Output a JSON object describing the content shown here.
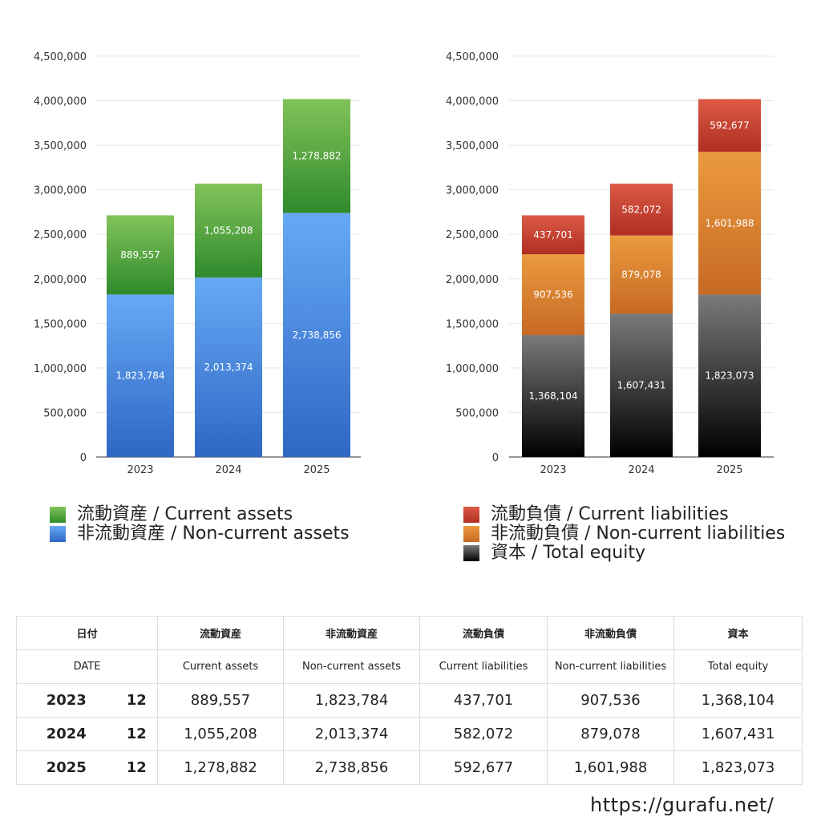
{
  "chart_data": [
    {
      "type": "bar",
      "stacked": true,
      "categories": [
        "2023",
        "2024",
        "2025"
      ],
      "ylim": [
        0,
        4500000
      ],
      "yticks": [
        0,
        500000,
        1000000,
        1500000,
        2000000,
        2500000,
        3000000,
        3500000,
        4000000,
        4500000
      ],
      "ytick_labels": [
        "0",
        "500,000",
        "1,000,000",
        "1,500,000",
        "2,000,000",
        "2,500,000",
        "3,000,000",
        "3,500,000",
        "4,000,000",
        "4,500,000"
      ],
      "grid": true,
      "legend_position": "bottom",
      "series": [
        {
          "name": "非流動資産 / Non-current assets",
          "values": [
            1823784,
            2013374,
            2738856
          ],
          "labels": [
            "1,823,784",
            "2,013,374",
            "2,738,856"
          ],
          "color_top": "#66a9f5",
          "color_bottom": "#2f67c4"
        },
        {
          "name": "流動資産 / Current assets",
          "values": [
            889557,
            1055208,
            1278882
          ],
          "labels": [
            "889,557",
            "1,055,208",
            "1,278,882"
          ],
          "color_top": "#82c35a",
          "color_bottom": "#2f8a2c"
        }
      ],
      "legend": [
        {
          "label": "流動資産 / Current assets",
          "color_top": "#82c35a",
          "color_bottom": "#2f8a2c"
        },
        {
          "label": "非流動資産 / Non-current assets",
          "color_top": "#66a9f5",
          "color_bottom": "#2f67c4"
        }
      ]
    },
    {
      "type": "bar",
      "stacked": true,
      "categories": [
        "2023",
        "2024",
        "2025"
      ],
      "ylim": [
        0,
        4500000
      ],
      "yticks": [
        0,
        500000,
        1000000,
        1500000,
        2000000,
        2500000,
        3000000,
        3500000,
        4000000,
        4500000
      ],
      "ytick_labels": [
        "0",
        "500,000",
        "1,000,000",
        "1,500,000",
        "2,000,000",
        "2,500,000",
        "3,000,000",
        "3,500,000",
        "4,000,000",
        "4,500,000"
      ],
      "grid": true,
      "legend_position": "bottom",
      "series": [
        {
          "name": "資本 / Total equity",
          "values": [
            1368104,
            1607431,
            1823073
          ],
          "labels": [
            "1,368,104",
            "1,607,431",
            "1,823,073"
          ],
          "color_top": "#7a7a7a",
          "color_bottom": "#000000"
        },
        {
          "name": "非流動負債 / Non-current liabilities",
          "values": [
            907536,
            879078,
            1601988
          ],
          "labels": [
            "907,536",
            "879,078",
            "1,601,988"
          ],
          "color_top": "#eb9a3f",
          "color_bottom": "#c76a24"
        },
        {
          "name": "流動負債 / Current liabilities",
          "values": [
            437701,
            582072,
            592677
          ],
          "labels": [
            "437,701",
            "582,072",
            "592,677"
          ],
          "color_top": "#dc5a45",
          "color_bottom": "#b02e22"
        }
      ],
      "legend": [
        {
          "label": "流動負債 / Current liabilities",
          "color_top": "#dc5a45",
          "color_bottom": "#b02e22"
        },
        {
          "label": "非流動負債 / Non-current liabilities",
          "color_top": "#eb9a3f",
          "color_bottom": "#c76a24"
        },
        {
          "label": "資本 / Total equity",
          "color_top": "#7a7a7a",
          "color_bottom": "#000000"
        }
      ]
    }
  ],
  "table": {
    "headers_jp": [
      "日付",
      "流動資産",
      "非流動資産",
      "流動負債",
      "非流動負債",
      "資本"
    ],
    "headers_en": [
      "DATE",
      "Current assets",
      "Non-current assets",
      "Current liabilities",
      "Non-current liabilities",
      "Total equity"
    ],
    "rows": [
      {
        "year": "2023",
        "month": "12",
        "cells": [
          "889,557",
          "1,823,784",
          "437,701",
          "907,536",
          "1,368,104"
        ]
      },
      {
        "year": "2024",
        "month": "12",
        "cells": [
          "1,055,208",
          "2,013,374",
          "582,072",
          "879,078",
          "1,607,431"
        ]
      },
      {
        "year": "2025",
        "month": "12",
        "cells": [
          "1,278,882",
          "2,738,856",
          "592,677",
          "1,601,988",
          "1,823,073"
        ]
      }
    ]
  },
  "site_url": "https://gurafu.net/"
}
